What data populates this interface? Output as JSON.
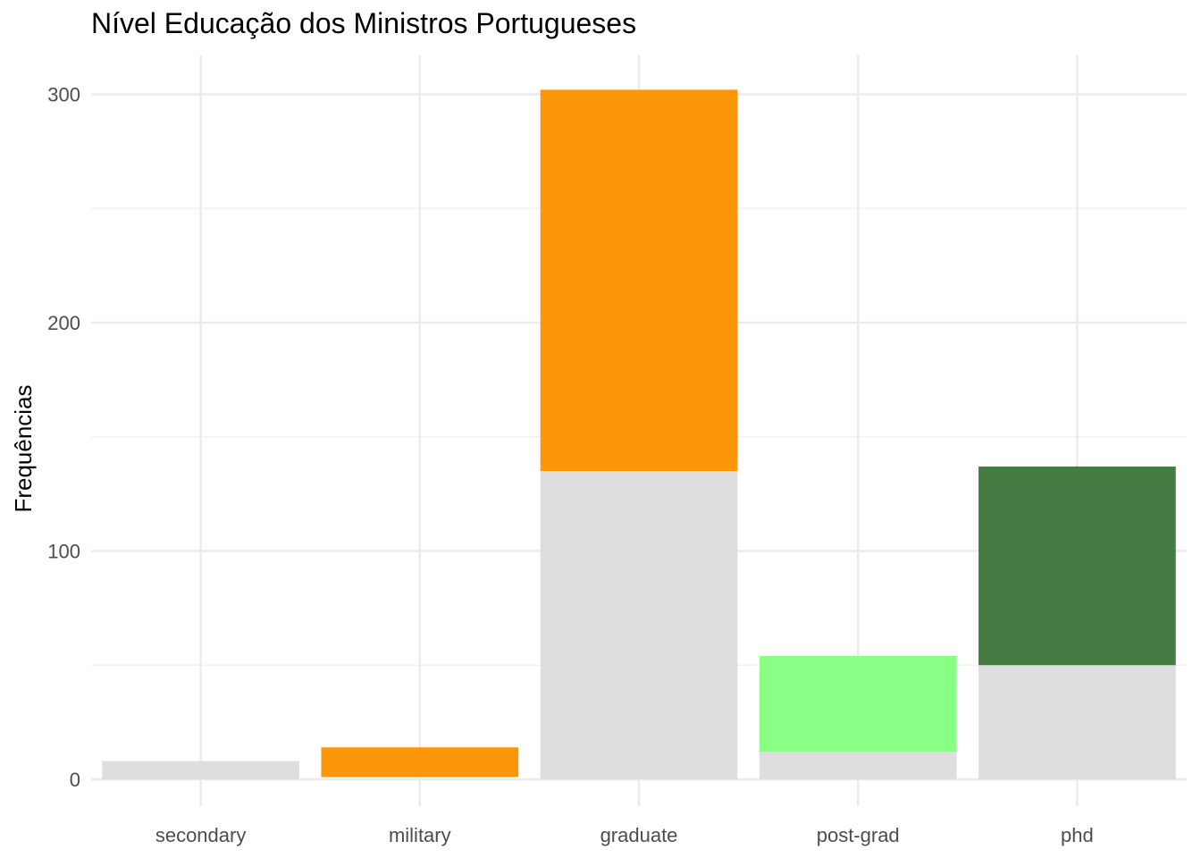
{
  "chart_data": {
    "type": "bar",
    "stacked": true,
    "title": "Nível Educação dos Ministros Portugueses",
    "xlabel": "",
    "ylabel": "Frequências",
    "categories": [
      "secondary",
      "military",
      "graduate",
      "post-grad",
      "phd"
    ],
    "yticks": [
      0,
      100,
      200,
      300
    ],
    "ylim": [
      -12,
      320
    ],
    "grid": true,
    "legend": "none",
    "bars": [
      {
        "category": "secondary",
        "segments": [
          {
            "from": 0,
            "to": 8,
            "color": "#DEDEDE"
          }
        ]
      },
      {
        "category": "military",
        "segments": [
          {
            "from": 1,
            "to": 14,
            "color": "#FD960B"
          }
        ]
      },
      {
        "category": "graduate",
        "segments": [
          {
            "from": 0,
            "to": 135,
            "color": "#DEDEDE"
          },
          {
            "from": 135,
            "to": 302,
            "color": "#FD960B"
          }
        ]
      },
      {
        "category": "post-grad",
        "segments": [
          {
            "from": 0,
            "to": 12,
            "color": "#DEDEDE"
          },
          {
            "from": 12,
            "to": 54,
            "color": "#8AFF86"
          }
        ]
      },
      {
        "category": "phd",
        "segments": [
          {
            "from": 0,
            "to": 50,
            "color": "#DEDEDE"
          },
          {
            "from": 50,
            "to": 137,
            "color": "#447C44"
          }
        ]
      }
    ],
    "colors": {
      "grid_major": "#EBEBEB",
      "grid_minor": "#F2F2F2",
      "axis_text": "#4D4D4D",
      "title_text": "#000000"
    }
  }
}
